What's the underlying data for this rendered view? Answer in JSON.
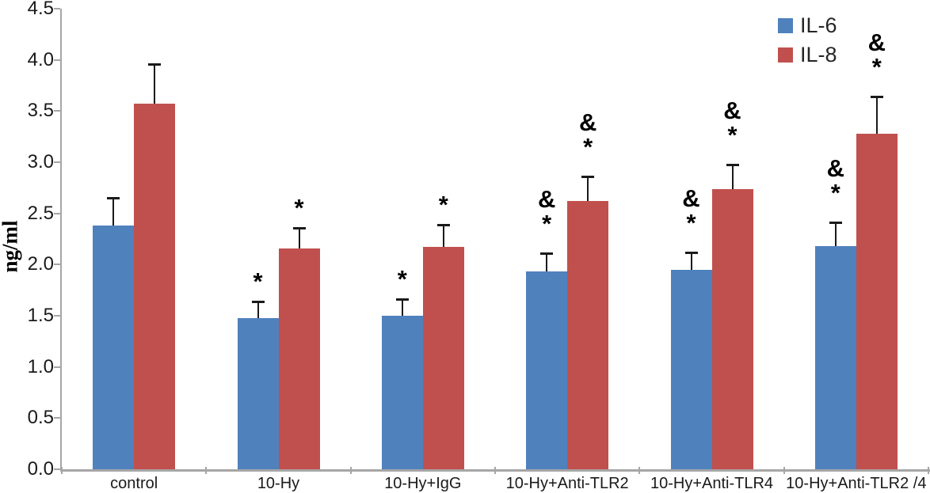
{
  "chart_data": {
    "type": "bar",
    "title": "",
    "xlabel": "",
    "ylabel": "ng/ml",
    "ylim": [
      0,
      4.5
    ],
    "ytick_step": 0.5,
    "ytick_labels": [
      "0.0",
      "0.5",
      "1.0",
      "1.5",
      "2.0",
      "2.5",
      "3.0",
      "3.5",
      "4.0",
      "4.5"
    ],
    "grid": false,
    "legend_position": "top-right",
    "categories": [
      "control",
      "10-Hy",
      "10-Hy+IgG",
      "10-Hy+Anti-TLR2",
      "10-Hy+Anti-TLR4",
      "10-Hy+Anti-TLR2 /4"
    ],
    "series": [
      {
        "name": "IL-6",
        "color": "#4f81bd",
        "values": [
          2.38,
          1.48,
          1.5,
          1.93,
          1.95,
          2.18
        ],
        "errors_plus": [
          0.27,
          0.16,
          0.16,
          0.18,
          0.17,
          0.23
        ],
        "annotations": [
          [],
          [
            "*"
          ],
          [
            "*"
          ],
          [
            "&",
            "*"
          ],
          [
            "&",
            "*"
          ],
          [
            "&",
            "*"
          ]
        ]
      },
      {
        "name": "IL-8",
        "color": "#c0504d",
        "values": [
          3.57,
          2.16,
          2.17,
          2.62,
          2.74,
          3.28
        ],
        "errors_plus": [
          0.39,
          0.2,
          0.22,
          0.24,
          0.24,
          0.36
        ],
        "annotations": [
          [],
          [
            "*"
          ],
          [
            "*"
          ],
          [
            "&",
            "*"
          ],
          [
            "&",
            "*"
          ],
          [
            "&",
            "*"
          ]
        ]
      }
    ],
    "annotation_symbols": {
      "star": "*",
      "ampersand": "&"
    }
  }
}
